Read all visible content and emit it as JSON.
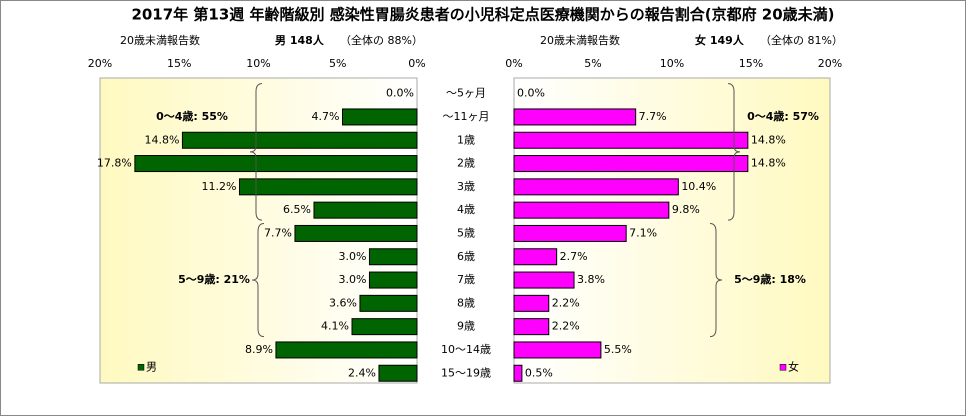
{
  "chart_data": {
    "type": "pyramid",
    "title": "2017年 第13週 年齢階級別 感染性胃腸炎患者の小児科定点医療機関からの報告割合(京都府 20歳未満)",
    "categories": [
      "～5ヶ月",
      "～11ヶ月",
      "1歳",
      "2歳",
      "3歳",
      "4歳",
      "5歳",
      "6歳",
      "7歳",
      "8歳",
      "9歳",
      "10～14歳",
      "15～19歳"
    ],
    "series": [
      {
        "name": "男",
        "color": "#006400",
        "side": "left",
        "legend": "bottom-left",
        "header_label": "20歳未満報告数",
        "header": "男  148人",
        "header_note": "（全体の  88%）",
        "xlim": [
          20,
          0
        ],
        "xticks": [
          {
            "value": 20,
            "label": "20%"
          },
          {
            "value": 15,
            "label": "15%"
          },
          {
            "value": 10,
            "label": "10%"
          },
          {
            "value": 5,
            "label": "5%"
          },
          {
            "value": 0,
            "label": "0%"
          }
        ],
        "values": [
          0,
          4.7,
          14.8,
          17.8,
          11.2,
          6.5,
          7.7,
          3.0,
          3.0,
          3.6,
          4.1,
          8.9,
          2.4
        ],
        "value_labels": [
          "0.0%",
          "4.7%",
          "14.8%",
          "17.8%",
          "11.2%",
          "6.5%",
          "7.7%",
          "3.0%",
          "3.0%",
          "3.6%",
          "4.1%",
          "8.9%",
          "2.4%"
        ],
        "annotations": [
          "0～4歳: 55%",
          "5～9歳: 21%"
        ]
      },
      {
        "name": "女",
        "color": "#ff00ff",
        "side": "right",
        "legend": "bottom-right",
        "header_label": "20歳未満報告数",
        "header": "女  149人",
        "header_note": "（全体の  81%）",
        "xlim": [
          0,
          20
        ],
        "xticks": [
          {
            "value": 0,
            "label": "0%"
          },
          {
            "value": 5,
            "label": "5%"
          },
          {
            "value": 10,
            "label": "10%"
          },
          {
            "value": 15,
            "label": "15%"
          },
          {
            "value": 20,
            "label": "20%"
          }
        ],
        "values": [
          0,
          7.7,
          14.8,
          14.8,
          10.4,
          9.8,
          7.1,
          2.7,
          3.8,
          2.2,
          2.2,
          5.5,
          0.5
        ],
        "value_labels": [
          "0.0%",
          "7.7%",
          "14.8%",
          "14.8%",
          "10.4%",
          "9.8%",
          "7.1%",
          "2.7%",
          "3.8%",
          "2.2%",
          "2.2%",
          "5.5%",
          "0.5%"
        ],
        "annotations": [
          "0～4歳: 57%",
          "5～9歳: 18%"
        ]
      }
    ]
  }
}
